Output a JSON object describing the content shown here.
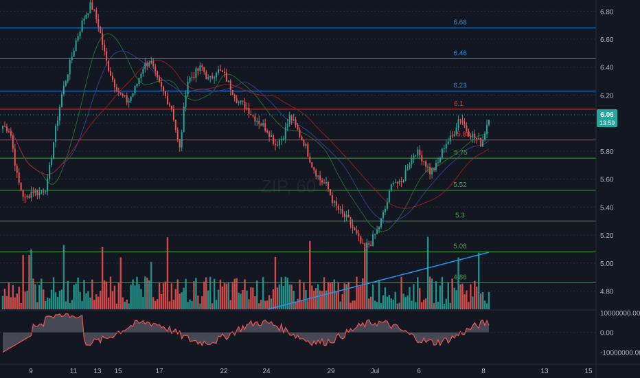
{
  "chart_data": [
    {
      "type": "candlestick",
      "title": "",
      "watermark": "ZIP, 60",
      "colors": {
        "background": "#131722",
        "up": "#26a69a",
        "down": "#ef5350",
        "grid": "#2a2e39",
        "blue_level": "#1e88e5",
        "red_level": "#e53935",
        "green_level": "#43a047"
      },
      "x_ticks": [
        "9",
        "11",
        "13",
        "15",
        "17",
        "22",
        "24",
        "29",
        "Jul",
        "6",
        "8",
        "13",
        "15"
      ],
      "y_ticks": [
        "6.80",
        "6.60",
        "6.40",
        "6.20",
        "6.00",
        "5.80",
        "5.60",
        "5.40",
        "5.20",
        "5.00",
        "4.80"
      ],
      "ylim": [
        4.67,
        6.88
      ],
      "current_price": "6.06",
      "countdown": "13:59",
      "levels": [
        {
          "value": 6.68,
          "label": "6.68",
          "color": "blue"
        },
        {
          "value": 6.46,
          "label": "6.46",
          "color": "blue"
        },
        {
          "value": 6.23,
          "label": "6.23",
          "color": "blue"
        },
        {
          "value": 6.1,
          "label": "6.1",
          "color": "red"
        },
        {
          "value": 5.88,
          "label": "5.88",
          "color": "red"
        },
        {
          "value": 5.75,
          "label": "5.75",
          "color": "green"
        },
        {
          "value": 5.52,
          "label": "5.52",
          "color": "green"
        },
        {
          "value": 5.3,
          "label": "5.3",
          "color": "green"
        },
        {
          "value": 5.08,
          "label": "5.08",
          "color": "green"
        },
        {
          "value": 4.86,
          "label": "4.86",
          "color": "green"
        }
      ],
      "price_path": [
        5.98,
        5.95,
        5.6,
        5.45,
        5.52,
        5.5,
        5.55,
        5.9,
        6.2,
        6.4,
        6.6,
        6.75,
        6.85,
        6.7,
        6.45,
        6.3,
        6.2,
        6.15,
        6.25,
        6.4,
        6.45,
        6.3,
        6.2,
        6.1,
        5.8,
        6.3,
        6.35,
        6.4,
        6.3,
        6.38,
        6.35,
        6.25,
        6.15,
        6.12,
        6.05,
        6.0,
        5.95,
        5.85,
        5.9,
        6.05,
        5.95,
        5.85,
        5.7,
        5.6,
        5.55,
        5.42,
        5.35,
        5.3,
        5.2,
        5.1,
        5.15,
        5.25,
        5.4,
        5.6,
        5.55,
        5.7,
        5.8,
        5.75,
        5.65,
        5.7,
        5.85,
        5.9,
        6.05,
        5.95,
        5.9,
        5.85,
        6.05
      ]
    },
    {
      "type": "bar",
      "name": "volume",
      "colors": {
        "up": "#26a69a",
        "down": "#ef5350",
        "ma": "#2196f3"
      }
    },
    {
      "type": "area",
      "name": "oscillator",
      "y_ticks": [
        "10000000.00",
        "0.00",
        "-10000000.00"
      ],
      "ylim": [
        -14000000,
        11000000
      ],
      "colors": {
        "fill": "#5d606b",
        "pos_line": "#5c6bc0",
        "neg_line": "#ef5350"
      }
    }
  ]
}
